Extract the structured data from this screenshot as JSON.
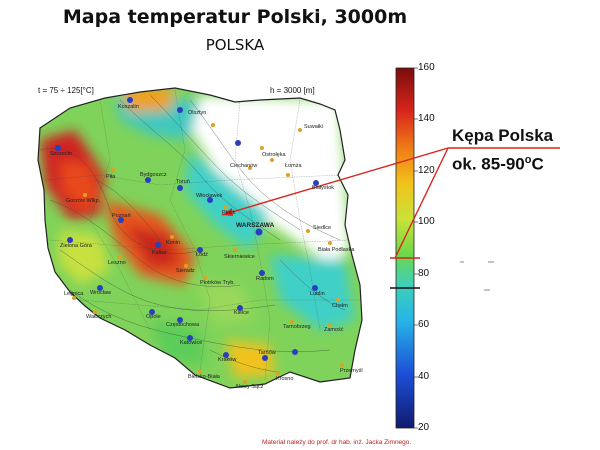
{
  "title": "Mapa temperatur Polski, 3000m",
  "subtitle": "POLSKA",
  "meta": {
    "t_range": "t = 75 ÷ 125[°C]",
    "depth": "h = 3000 [m]"
  },
  "colorbar": {
    "ticks": [
      "160",
      "140",
      "120",
      "100",
      "80",
      "60",
      "40",
      "20"
    ],
    "range": [
      20,
      160
    ],
    "colors": [
      "#111a6e",
      "#1c4fd8",
      "#27b6e6",
      "#3fd0b8",
      "#6ad84a",
      "#c9e23a",
      "#f2c21a",
      "#ef7a16",
      "#d8261c",
      "#7a0c0c"
    ]
  },
  "callout": {
    "line1": "Kępa Polska",
    "line2": "ok. 85-90",
    "degree": "o",
    "unit": "C",
    "color": "#d8261c"
  },
  "credit": "Materiał należy do prof. dr hab. inż. Jacka Zimnego.",
  "cities": [
    {
      "name": "Koszalin"
    },
    {
      "name": "Olsztyn"
    },
    {
      "name": "Suwałki"
    },
    {
      "name": "Łomża"
    },
    {
      "name": "Białystok"
    },
    {
      "name": "Ciechanów"
    },
    {
      "name": "Ostrołęka"
    },
    {
      "name": "WARSZAWA"
    },
    {
      "name": "Siedlce"
    },
    {
      "name": "Biała Podlaska"
    },
    {
      "name": "Szczecin"
    },
    {
      "name": "Piła"
    },
    {
      "name": "Bydgoszcz"
    },
    {
      "name": "Toruń"
    },
    {
      "name": "Włocławek"
    },
    {
      "name": "Płock"
    },
    {
      "name": "Gorzów Wlkp."
    },
    {
      "name": "Poznań"
    },
    {
      "name": "Konin"
    },
    {
      "name": "Zielona Góra"
    },
    {
      "name": "Leszno"
    },
    {
      "name": "Kalisz"
    },
    {
      "name": "Łódź"
    },
    {
      "name": "Skierniewice"
    },
    {
      "name": "Sieradz"
    },
    {
      "name": "Piotrków Tryb."
    },
    {
      "name": "Radom"
    },
    {
      "name": "Lublin"
    },
    {
      "name": "Chełm"
    },
    {
      "name": "Legnica"
    },
    {
      "name": "Wrocław"
    },
    {
      "name": "Opole"
    },
    {
      "name": "Częstochowa"
    },
    {
      "name": "Kielce"
    },
    {
      "name": "Tarnobrzeg"
    },
    {
      "name": "Zamość"
    },
    {
      "name": "Katowice"
    },
    {
      "name": "Kraków"
    },
    {
      "name": "Tarnów"
    },
    {
      "name": "Przemyśl"
    },
    {
      "name": "Krosno"
    },
    {
      "name": "Nowy Sącz"
    },
    {
      "name": "Bielsko-Biała"
    },
    {
      "name": "Wałbrzych"
    }
  ]
}
